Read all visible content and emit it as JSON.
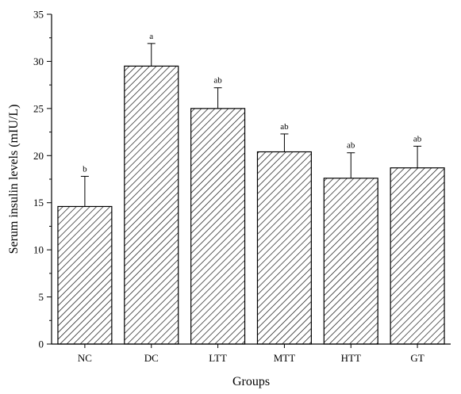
{
  "chart_data": {
    "type": "bar",
    "title": "",
    "xlabel": "Groups",
    "ylabel": "Serum insulin levels (mIU/L)",
    "ylim": [
      0,
      35
    ],
    "yticks": [
      0,
      5,
      10,
      15,
      20,
      25,
      30,
      35
    ],
    "categories": [
      "NC",
      "DC",
      "LTT",
      "MTT",
      "HTT",
      "GT"
    ],
    "values": [
      14.6,
      29.5,
      25.0,
      20.4,
      17.6,
      18.7
    ],
    "errors": [
      3.2,
      2.4,
      2.2,
      1.9,
      2.7,
      2.3
    ],
    "significance": [
      "b",
      "a",
      "ab",
      "ab",
      "ab",
      "ab"
    ],
    "bar_fill": "hatched",
    "grid": false,
    "legend": "none"
  }
}
